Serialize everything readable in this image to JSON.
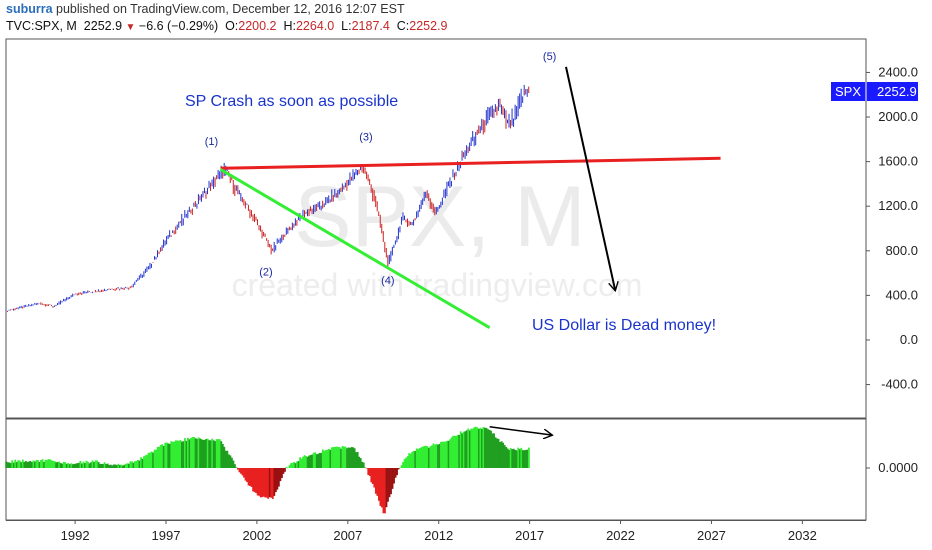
{
  "header": {
    "user": "suburra",
    "published": " published on TradingView.com, December 12, 2016 12:07 EST",
    "symbol": "TVC:SPX, M",
    "last": "2252.9",
    "change": "−6.6 (−0.29%)",
    "o_label": "O:",
    "o": "2200.2",
    "h_label": "H:",
    "h": "2264.0",
    "l_label": "L:",
    "l": "2187.4",
    "c_label": "C:",
    "c": "2252.9"
  },
  "price_badge": {
    "symbol": "SPX",
    "value": "2252.9"
  },
  "watermark": {
    "symbol": "SPX, M",
    "credit": "created with tradingview.com"
  },
  "annotations": {
    "crash": "SP Crash as soon as possible",
    "dollar": "US Dollar is Dead money!",
    "waves": [
      "(1)",
      "(2)",
      "(3)",
      "(4)",
      "(5)"
    ]
  },
  "colors": {
    "candle_up": "#2233cc",
    "candle_down": "#cc2222",
    "resistance": "#e82020",
    "support": "#33ee33",
    "forecast": "#000000",
    "osc_up": "#33ee33",
    "osc_up_dark": "#1f9e1f",
    "osc_down": "#e82020",
    "osc_down_dark": "#9a1010",
    "badge": "#1a1aff"
  },
  "chart_data": {
    "type": "candlestick-monthly",
    "symbol": "SPX",
    "interval": "M",
    "x_ticks": [
      "1992",
      "1997",
      "2002",
      "2007",
      "2012",
      "2017",
      "2022",
      "2027",
      "2032"
    ],
    "y_ticks": [
      "2400.0",
      "2000.0",
      "1600.0",
      "1200.0",
      "800.0",
      "400.0",
      "0.0",
      "-400.0"
    ],
    "ylim": [
      -700,
      2700
    ],
    "xlim": [
      1988.2,
      2035.5
    ],
    "close_path": [
      {
        "x": 1988.2,
        "y": 260
      },
      {
        "x": 1990.0,
        "y": 330
      },
      {
        "x": 1990.8,
        "y": 300
      },
      {
        "x": 1992.0,
        "y": 415
      },
      {
        "x": 1994.0,
        "y": 460
      },
      {
        "x": 1995.0,
        "y": 470
      },
      {
        "x": 1996.0,
        "y": 640
      },
      {
        "x": 1997.0,
        "y": 900
      },
      {
        "x": 1998.0,
        "y": 1100
      },
      {
        "x": 1999.0,
        "y": 1300
      },
      {
        "x": 2000.2,
        "y": 1530
      },
      {
        "x": 2001.0,
        "y": 1300
      },
      {
        "x": 2001.8,
        "y": 1100
      },
      {
        "x": 2002.8,
        "y": 800
      },
      {
        "x": 2003.5,
        "y": 950
      },
      {
        "x": 2004.5,
        "y": 1130
      },
      {
        "x": 2005.5,
        "y": 1200
      },
      {
        "x": 2006.5,
        "y": 1330
      },
      {
        "x": 2007.8,
        "y": 1560
      },
      {
        "x": 2008.5,
        "y": 1250
      },
      {
        "x": 2009.2,
        "y": 680
      },
      {
        "x": 2010.0,
        "y": 1100
      },
      {
        "x": 2010.5,
        "y": 1030
      },
      {
        "x": 2011.3,
        "y": 1330
      },
      {
        "x": 2011.8,
        "y": 1130
      },
      {
        "x": 2012.5,
        "y": 1380
      },
      {
        "x": 2013.5,
        "y": 1700
      },
      {
        "x": 2014.5,
        "y": 1950
      },
      {
        "x": 2015.3,
        "y": 2100
      },
      {
        "x": 2015.8,
        "y": 1920
      },
      {
        "x": 2016.2,
        "y": 2000
      },
      {
        "x": 2016.5,
        "y": 2170
      },
      {
        "x": 2016.95,
        "y": 2252.9
      }
    ],
    "lines": {
      "resistance": [
        {
          "x": 2000.0,
          "y": 1540
        },
        {
          "x": 2027.5,
          "y": 1630
        }
      ],
      "support": [
        {
          "x": 2000.0,
          "y": 1530
        },
        {
          "x": 2014.8,
          "y": 110
        }
      ],
      "forecast": [
        {
          "x": 2019.0,
          "y": 2450
        },
        {
          "x": 2021.7,
          "y": 450
        }
      ]
    },
    "wave_points": [
      {
        "label": "(1)",
        "x": 1999.5,
        "y": 1750
      },
      {
        "label": "(2)",
        "x": 2002.5,
        "y": 580
      },
      {
        "label": "(3)",
        "x": 2008.0,
        "y": 1790
      },
      {
        "label": "(4)",
        "x": 2009.2,
        "y": 500
      },
      {
        "label": "(5)",
        "x": 2018.1,
        "y": 2510
      }
    ],
    "oscillator": {
      "ylim": [
        -1.0,
        1.0
      ],
      "y_ticks": [
        "0.0000"
      ],
      "keypoints": [
        {
          "x": 1988.2,
          "y": 0.12
        },
        {
          "x": 1990.5,
          "y": 0.14
        },
        {
          "x": 1991.5,
          "y": 0.08
        },
        {
          "x": 1993.0,
          "y": 0.12
        },
        {
          "x": 1994.5,
          "y": 0.05
        },
        {
          "x": 1995.5,
          "y": 0.15
        },
        {
          "x": 1997.0,
          "y": 0.45
        },
        {
          "x": 1998.5,
          "y": 0.55
        },
        {
          "x": 2000.0,
          "y": 0.5
        },
        {
          "x": 2000.9,
          "y": 0.0
        },
        {
          "x": 2002.0,
          "y": -0.5
        },
        {
          "x": 2002.9,
          "y": -0.55
        },
        {
          "x": 2003.6,
          "y": 0.0
        },
        {
          "x": 2004.5,
          "y": 0.2
        },
        {
          "x": 2006.0,
          "y": 0.35
        },
        {
          "x": 2007.3,
          "y": 0.4
        },
        {
          "x": 2008.0,
          "y": 0.0
        },
        {
          "x": 2009.0,
          "y": -0.85
        },
        {
          "x": 2009.8,
          "y": 0.0
        },
        {
          "x": 2010.5,
          "y": 0.3
        },
        {
          "x": 2011.5,
          "y": 0.4
        },
        {
          "x": 2012.5,
          "y": 0.5
        },
        {
          "x": 2013.5,
          "y": 0.7
        },
        {
          "x": 2014.6,
          "y": 0.75
        },
        {
          "x": 2015.8,
          "y": 0.35
        },
        {
          "x": 2016.95,
          "y": 0.35
        }
      ],
      "forecast_arrow": [
        {
          "x": 2014.8,
          "y": 0.75
        },
        {
          "x": 2018.2,
          "y": 0.6
        }
      ]
    }
  }
}
